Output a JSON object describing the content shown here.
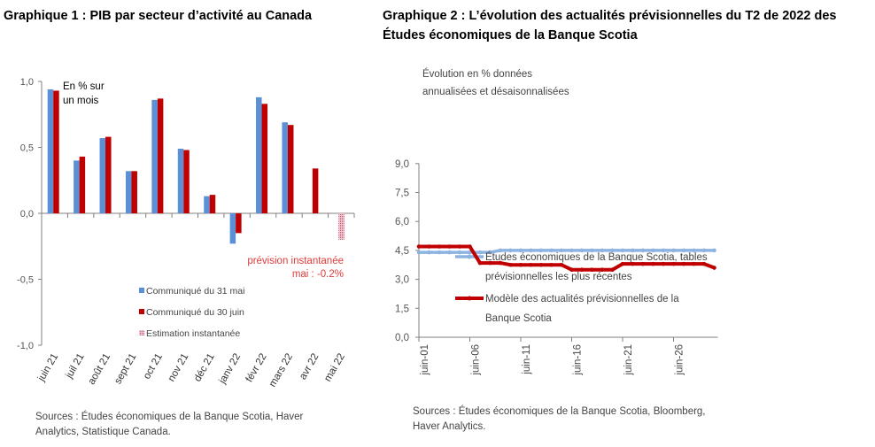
{
  "chart_data": [
    {
      "type": "bar",
      "title": "Graphique 1 : PIB par secteur d’activité au Canada",
      "annotation_unit": [
        "En % sur",
        "un mois"
      ],
      "annotation_nowcast": [
        "prévision instantanée",
        "mai : -0.2%"
      ],
      "categories": [
        "juin 21",
        "juil 21",
        "août 21",
        "sept 21",
        "oct 21",
        "nov 21",
        "déc 21",
        "janv 22",
        "févr 22",
        "mars 22",
        "avr 22",
        "mai 22"
      ],
      "series": [
        {
          "name": "Communiqué du 31 mai",
          "color": "#5b8fd6",
          "values": [
            0.94,
            0.4,
            0.57,
            0.32,
            0.86,
            0.49,
            0.13,
            -0.23,
            0.88,
            0.69,
            null,
            null
          ]
        },
        {
          "name": "Communiqué du 30 juin",
          "color": "#c00000",
          "values": [
            0.93,
            0.43,
            0.58,
            0.32,
            0.87,
            0.48,
            0.14,
            -0.15,
            0.83,
            0.67,
            0.34,
            null
          ]
        },
        {
          "name": "Estimation instantanée",
          "color": "#e3a3b0",
          "values": [
            null,
            null,
            null,
            null,
            null,
            null,
            null,
            null,
            null,
            null,
            null,
            -0.2
          ]
        }
      ],
      "ylim": [
        -1.0,
        1.0
      ],
      "yticks": [
        "1,0",
        "0,5",
        "0,0",
        "-0,5",
        "-1,0"
      ],
      "ytick_values": [
        1.0,
        0.5,
        0.0,
        -0.5,
        -1.0
      ],
      "legend": "bottom-center",
      "source": "Sources : Études économiques de la Banque Scotia, Haver Analytics, Statistique Canada."
    },
    {
      "type": "line",
      "title": "Graphique 2 :  L’évolution des actualités prévisionnelles du T2 de 2022 des Études économiques de la Banque Scotia",
      "ylabel": [
        "Évolution en % données",
        "annualisées et désaisonnalisées"
      ],
      "x": [
        1,
        2,
        3,
        4,
        5,
        6,
        7,
        8,
        9,
        10,
        11,
        12,
        13,
        14,
        15,
        16,
        17,
        18,
        19,
        20,
        21,
        22,
        23,
        24,
        25,
        26,
        27,
        28,
        29,
        30
      ],
      "xticks": [
        "juin-01",
        "juin-06",
        "juin-11",
        "juin-16",
        "juin-21",
        "juin-26"
      ],
      "xtick_values": [
        1,
        6,
        11,
        16,
        21,
        26
      ],
      "ylim": [
        0,
        9
      ],
      "yticks": [
        "9,0",
        "7,5",
        "6,0",
        "4,5",
        "3,0",
        "1,5",
        "0,0"
      ],
      "ytick_values": [
        9,
        7.5,
        6,
        4.5,
        3,
        1.5,
        0
      ],
      "series": [
        {
          "name": "Études économiques de la Banque Scotia, tables prévisionnelles les plus récentes",
          "color": "#8db3e2",
          "values": [
            4.4,
            4.4,
            4.4,
            4.4,
            4.4,
            4.4,
            4.4,
            4.4,
            4.5,
            4.5,
            4.5,
            4.5,
            4.5,
            4.5,
            4.5,
            4.5,
            4.5,
            4.5,
            4.5,
            4.5,
            4.5,
            4.5,
            4.5,
            4.5,
            4.5,
            4.5,
            4.5,
            4.5,
            4.5,
            4.5
          ]
        },
        {
          "name": "Modèle des actualités prévisionnelles de la Banque Scotia",
          "color": "#c00000",
          "values": [
            4.7,
            4.7,
            4.7,
            4.7,
            4.7,
            4.7,
            3.85,
            3.85,
            3.85,
            3.75,
            3.75,
            3.75,
            3.75,
            3.75,
            3.75,
            3.5,
            3.5,
            3.5,
            3.5,
            3.5,
            3.8,
            3.8,
            3.8,
            3.8,
            3.8,
            3.8,
            3.8,
            3.8,
            3.8,
            3.6
          ]
        }
      ],
      "legend_lines": [
        [
          "Études économiques de la Banque Scotia, tables",
          "prévisionnelles les plus récentes"
        ],
        [
          "Modèle des actualités prévisionnelles de la",
          "Banque Scotia"
        ]
      ],
      "legend": "center",
      "source": "Sources : Études économiques de la Banque Scotia, Bloomberg, Haver Analytics."
    }
  ]
}
